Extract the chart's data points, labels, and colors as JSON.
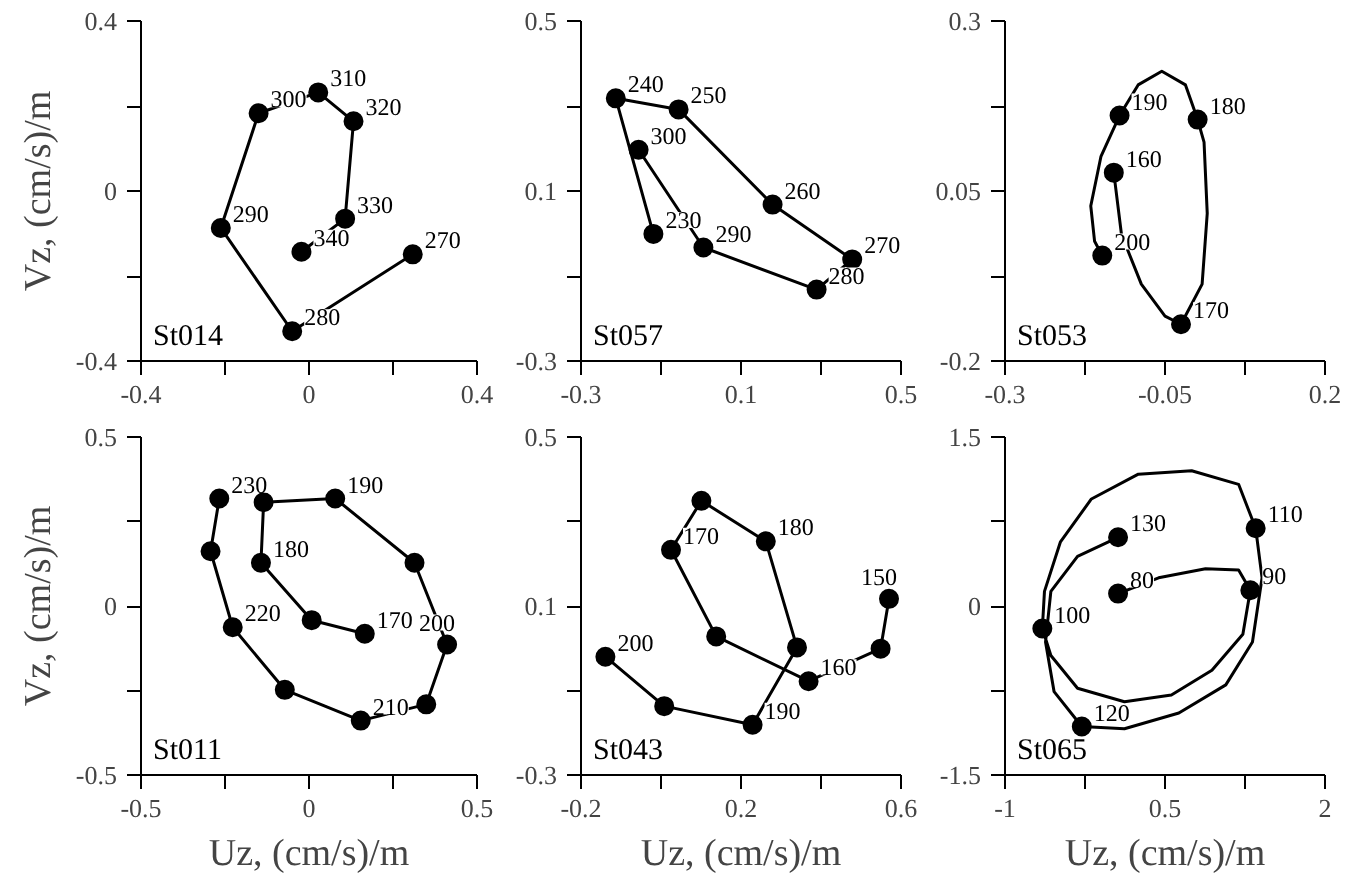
{
  "chart_data": [
    {
      "type": "line",
      "color": "#000000",
      "ylabel": "Vz, (cm/s)/m",
      "series": [
        {
          "marker": "circle",
          "x": [
            0.247,
            -0.04,
            -0.21,
            -0.12,
            0.022,
            0.106,
            0.086,
            -0.018
          ],
          "values": [
            -0.149,
            -0.33,
            -0.087,
            0.183,
            0.232,
            0.164,
            -0.065,
            -0.143
          ]
        }
      ],
      "xlim": [
        -0.4,
        0.4
      ],
      "xticks": [
        -0.4,
        {
          "value": -0.2,
          "label": null
        },
        0,
        {
          "value": 0.2,
          "label": null
        },
        0.4
      ],
      "ylim": [
        -0.4,
        0.4
      ],
      "yticks": [
        -0.4,
        {
          "value": -0.2,
          "label": null
        },
        0,
        {
          "value": 0.2,
          "label": null
        },
        0.4
      ],
      "annotations": [
        "St014",
        {
          "text": "270",
          "x": 0.247,
          "y": -0.149
        },
        {
          "text": "280",
          "x": -0.04,
          "y": -0.33
        },
        {
          "text": "290",
          "x": -0.21,
          "y": -0.087
        },
        {
          "text": "300",
          "x": -0.12,
          "y": 0.183
        },
        {
          "text": "310",
          "x": 0.022,
          "y": 0.232
        },
        {
          "text": "320",
          "x": 0.106,
          "y": 0.164
        },
        {
          "text": "330",
          "x": 0.086,
          "y": -0.065
        },
        {
          "text": "340",
          "x": -0.018,
          "y": -0.143
        }
      ]
    },
    {
      "type": "line",
      "color": "#000000",
      "series": [
        {
          "marker": "circle",
          "x": [
            -0.119,
            -0.213,
            -0.056,
            0.179,
            0.378,
            0.289,
            0.006,
            -0.156
          ],
          "values": [
            -0.001,
            0.318,
            0.292,
            0.068,
            -0.061,
            -0.132,
            -0.033,
            0.197
          ]
        }
      ],
      "xlim": [
        -0.3,
        0.5
      ],
      "xticks": [
        -0.3,
        {
          "value": -0.1,
          "label": null
        },
        0.1,
        {
          "value": 0.3,
          "label": null
        },
        0.5
      ],
      "ylim": [
        -0.3,
        0.5
      ],
      "yticks": [
        -0.3,
        {
          "value": -0.1,
          "label": null
        },
        0.1,
        {
          "value": 0.3,
          "label": null
        },
        0.5
      ],
      "annotations": [
        "St057",
        {
          "text": "230",
          "x": -0.119,
          "y": -0.001
        },
        {
          "text": "240",
          "x": -0.213,
          "y": 0.318
        },
        {
          "text": "250",
          "x": -0.056,
          "y": 0.292
        },
        {
          "text": "260",
          "x": 0.179,
          "y": 0.068
        },
        {
          "text": "270",
          "x": 0.378,
          "y": -0.061
        },
        {
          "text": "280",
          "x": 0.289,
          "y": -0.132
        },
        {
          "text": "290",
          "x": 0.006,
          "y": -0.033
        },
        {
          "text": "300",
          "x": -0.156,
          "y": 0.197
        }
      ]
    },
    {
      "type": "line",
      "color": "#000000",
      "series": [
        {
          "marker": "none",
          "x": [
            -0.13,
            -0.118,
            -0.087,
            -0.05,
            -0.025,
            0.008,
            0.016,
            0.011,
            0.001,
            -0.018,
            -0.055,
            -0.092,
            -0.121,
            -0.15,
            -0.166,
            -0.16,
            -0.148
          ],
          "values": [
            0.077,
            -0.014,
            -0.087,
            -0.134,
            -0.146,
            -0.087,
            0.017,
            0.122,
            0.155,
            0.206,
            0.226,
            0.206,
            0.161,
            0.101,
            0.028,
            -0.024,
            -0.045
          ]
        },
        {
          "type": "scatter",
          "marker": "circle",
          "x": [
            -0.13,
            -0.025,
            0.001,
            -0.121,
            -0.148
          ],
          "values": [
            0.077,
            -0.146,
            0.155,
            0.161,
            -0.045
          ]
        }
      ],
      "xlim": [
        -0.3,
        0.2
      ],
      "xticks": [
        -0.3,
        {
          "value": -0.175,
          "label": null
        },
        -0.05,
        {
          "value": 0.075,
          "label": null
        },
        0.2
      ],
      "ylim": [
        -0.2,
        0.3
      ],
      "yticks": [
        -0.2,
        {
          "value": -0.075,
          "label": null
        },
        0.05,
        {
          "value": 0.175,
          "label": null
        },
        0.3
      ],
      "annotations": [
        "St053",
        {
          "text": "160",
          "x": -0.13,
          "y": 0.077
        },
        {
          "text": "170",
          "x": -0.025,
          "y": -0.146
        },
        {
          "text": "180",
          "x": 0.001,
          "y": 0.155
        },
        {
          "text": "190",
          "x": -0.121,
          "y": 0.161
        },
        {
          "text": "200",
          "x": -0.148,
          "y": -0.045
        }
      ]
    },
    {
      "type": "line",
      "color": "#000000",
      "xlabel": "Uz, (cm/s)/m",
      "ylabel": "Vz, (cm/s)/m",
      "series": [
        {
          "marker": "circle",
          "x": [
            0.166,
            0.008,
            -0.143,
            -0.135,
            0.078,
            0.314,
            0.411,
            0.349,
            0.154,
            -0.072,
            -0.227,
            -0.293,
            -0.267
          ],
          "values": [
            -0.082,
            -0.042,
            0.128,
            0.307,
            0.318,
            0.128,
            -0.114,
            -0.291,
            -0.339,
            -0.248,
            -0.063,
            0.162,
            0.318
          ]
        }
      ],
      "xlim": [
        -0.5,
        0.5
      ],
      "xticks": [
        -0.5,
        {
          "value": -0.25,
          "label": null
        },
        0,
        {
          "value": 0.25,
          "label": null
        },
        0.5
      ],
      "ylim": [
        -0.5,
        0.5
      ],
      "yticks": [
        -0.5,
        {
          "value": -0.25,
          "label": null
        },
        0,
        {
          "value": 0.25,
          "label": null
        },
        0.5
      ],
      "annotations": [
        "St011",
        {
          "text": "170",
          "x": 0.166,
          "y": -0.082
        },
        {
          "text": "180",
          "x": -0.143,
          "y": 0.128
        },
        {
          "text": "190",
          "x": 0.078,
          "y": 0.318
        },
        {
          "text": "200",
          "x": 0.411,
          "y": -0.114
        },
        {
          "text": "210",
          "x": 0.154,
          "y": -0.339
        },
        {
          "text": "220",
          "x": -0.227,
          "y": -0.063
        },
        {
          "text": "230",
          "x": -0.267,
          "y": 0.318
        }
      ]
    },
    {
      "type": "line",
      "color": "#000000",
      "xlabel": "Uz, (cm/s)/m",
      "series": [
        {
          "marker": "circle",
          "x": [
            0.57,
            0.549,
            0.369,
            0.138,
            0.025,
            0.101,
            0.262,
            0.34,
            0.229,
            0.008,
            -0.139
          ],
          "values": [
            0.117,
            -0.001,
            -0.078,
            0.028,
            0.233,
            0.349,
            0.253,
            0.002,
            -0.181,
            -0.137,
            -0.02
          ]
        }
      ],
      "xlim": [
        -0.2,
        0.6
      ],
      "xticks": [
        -0.2,
        {
          "value": 0.0,
          "label": null
        },
        0.2,
        {
          "value": 0.4,
          "label": null
        },
        0.6
      ],
      "ylim": [
        -0.3,
        0.5
      ],
      "yticks": [
        -0.3,
        {
          "value": -0.1,
          "label": null
        },
        0.1,
        {
          "value": 0.3,
          "label": null
        },
        0.5
      ],
      "annotations": [
        "St043",
        {
          "text": "150",
          "x": 0.57,
          "y": 0.117
        },
        {
          "text": "160",
          "x": 0.369,
          "y": -0.078
        },
        {
          "text": "170",
          "x": 0.025,
          "y": 0.233
        },
        {
          "text": "180",
          "x": 0.262,
          "y": 0.253
        },
        {
          "text": "190",
          "x": 0.229,
          "y": -0.181
        },
        {
          "text": "200",
          "x": -0.139,
          "y": -0.02
        }
      ]
    },
    {
      "type": "line",
      "color": "#000000",
      "xlabel": "Uz, (cm/s)/m",
      "series": [
        {
          "marker": "none",
          "x": [
            0.06,
            0.44,
            0.88,
            1.19,
            1.3,
            1.23,
            0.94,
            0.56,
            0.12,
            -0.32,
            -0.57,
            -0.65,
            -0.63,
            -0.48,
            -0.19,
            0.25,
            0.75,
            1.19,
            1.35,
            1.41,
            1.32,
            1.07,
            0.63,
            0.12,
            -0.28,
            -0.54,
            -0.62,
            -0.57,
            -0.32,
            0.06
          ],
          "values": [
            0.11,
            0.25,
            0.33,
            0.32,
            0.14,
            -0.25,
            -0.57,
            -0.79,
            -0.85,
            -0.73,
            -0.44,
            -0.2,
            0.13,
            0.57,
            0.95,
            1.17,
            1.2,
            1.08,
            0.69,
            0.25,
            -0.32,
            -0.7,
            -0.95,
            -1.09,
            -1.07,
            -0.76,
            -0.32,
            0.13,
            0.44,
            0.61
          ]
        },
        {
          "type": "scatter",
          "marker": "circle",
          "x": [
            0.06,
            1.3,
            -0.65,
            1.35,
            -0.28,
            0.06
          ],
          "values": [
            0.11,
            0.14,
            -0.2,
            0.69,
            -1.07,
            0.61
          ]
        }
      ],
      "xlim": [
        -1,
        2
      ],
      "xticks": [
        -1,
        {
          "value": -0.25,
          "label": null
        },
        0.5,
        {
          "value": 1.25,
          "label": null
        },
        2
      ],
      "ylim": [
        -1.5,
        1.5
      ],
      "yticks": [
        -1.5,
        {
          "value": -0.75,
          "label": null
        },
        0,
        {
          "value": 0.75,
          "label": null
        },
        1.5
      ],
      "annotations": [
        "St065",
        {
          "text": "80",
          "x": 0.06,
          "y": 0.11
        },
        {
          "text": "90",
          "x": 1.3,
          "y": 0.14
        },
        {
          "text": "100",
          "x": -0.65,
          "y": -0.2
        },
        {
          "text": "110",
          "x": 1.35,
          "y": 0.69
        },
        {
          "text": "120",
          "x": -0.28,
          "y": -1.07
        },
        {
          "text": "130",
          "x": 0.06,
          "y": 0.61
        }
      ]
    }
  ]
}
